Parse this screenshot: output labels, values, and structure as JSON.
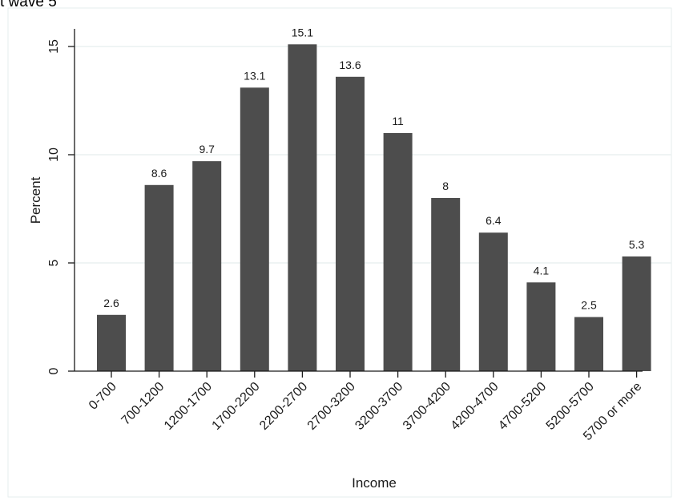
{
  "caption": "t wave 5",
  "chart_data": {
    "type": "bar",
    "categories": [
      "0-700",
      "700-1200",
      "1200-1700",
      "1700-2200",
      "2200-2700",
      "2700-3200",
      "3200-3700",
      "3700-4200",
      "4200-4700",
      "4700-5200",
      "5200-5700",
      "5700 or more"
    ],
    "values": [
      2.6,
      8.6,
      9.7,
      13.1,
      15.1,
      13.6,
      11,
      8,
      6.4,
      4.1,
      2.5,
      5.3
    ],
    "data_labels": [
      "2.6",
      "8.6",
      "9.7",
      "13.1",
      "15.1",
      "13.6",
      "11",
      "8",
      "6.4",
      "4.1",
      "2.5",
      "5.3"
    ],
    "xlabel": "Income",
    "ylabel": "Percent",
    "ylim": [
      0,
      16
    ],
    "yticks": [
      0,
      5,
      10,
      15
    ],
    "ytick_labels": [
      "0",
      "5",
      "10",
      "15"
    ],
    "grid": true,
    "legend": "none",
    "colors": {
      "bar": "#4d4d4d",
      "grid": "#eaf0f0",
      "axis": "#1a1a1a",
      "plot_border": "#e6eeee"
    }
  }
}
